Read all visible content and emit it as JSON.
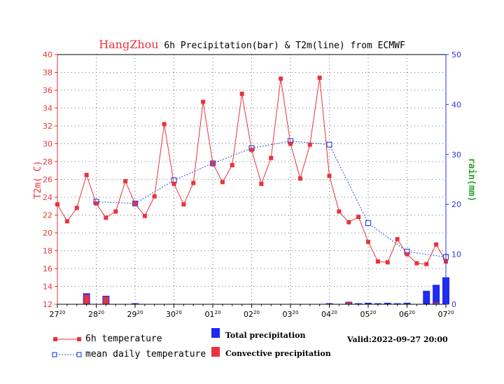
{
  "title": {
    "city": "HangZhou",
    "text": "6h Precipitation(bar) & T2m(line) from ECMWF"
  },
  "legend": {
    "temp_6h": "6h temperature",
    "mean_daily": "mean daily temperature",
    "total_precip": "Total precipitation",
    "convective_precip": "Convective precipitation"
  },
  "valid_text": "Valid:2022-09-27 20:00",
  "colors": {
    "temperature": "#e8333a",
    "mean_daily": "#2a4de8",
    "total_precip": "#1f2bf0",
    "convective_precip": "#e8333a",
    "left_axis": "#e8333a",
    "right_axis": "#2a33e8",
    "right_label": "#2aa02a"
  },
  "chart_data": {
    "type": "line",
    "x_tick_labels": [
      {
        "day": "27",
        "hour": "20"
      },
      {
        "day": "28",
        "hour": "20"
      },
      {
        "day": "29",
        "hour": "20"
      },
      {
        "day": "30",
        "hour": "20"
      },
      {
        "day": "01",
        "hour": "20"
      },
      {
        "day": "02",
        "hour": "20"
      },
      {
        "day": "03",
        "hour": "20"
      },
      {
        "day": "04",
        "hour": "20"
      },
      {
        "day": "05",
        "hour": "20"
      },
      {
        "day": "06",
        "hour": "20"
      },
      {
        "day": "07",
        "hour": "20"
      }
    ],
    "x_range_days": [
      0,
      10
    ],
    "ylabel_left": "T2m( C)",
    "ylim_left": [
      12,
      40
    ],
    "yticks_left": [
      12,
      14,
      16,
      18,
      20,
      22,
      24,
      26,
      28,
      30,
      32,
      34,
      36,
      38,
      40
    ],
    "ylabel_right": "rain(mm)",
    "ylim_right": [
      0,
      50
    ],
    "yticks_right": [
      0,
      10,
      20,
      30,
      40,
      50
    ],
    "grid": true,
    "series": [
      {
        "name": "6h temperature",
        "x": [
          0,
          0.25,
          0.5,
          0.75,
          1.0,
          1.25,
          1.5,
          1.75,
          2.0,
          2.25,
          2.5,
          2.75,
          3.0,
          3.25,
          3.5,
          3.75,
          4.0,
          4.25,
          4.5,
          4.75,
          5.0,
          5.25,
          5.5,
          5.75,
          6.0,
          6.25,
          6.5,
          6.75,
          7.0,
          7.25,
          7.5,
          7.75,
          8.0,
          8.25,
          8.5,
          8.75,
          9.0,
          9.25,
          9.5,
          9.75,
          10.0
        ],
        "values": [
          23.2,
          21.3,
          22.8,
          26.5,
          23.3,
          21.7,
          22.4,
          25.8,
          23.3,
          21.9,
          24.1,
          32.2,
          25.5,
          23.2,
          25.6,
          34.7,
          27.8,
          25.7,
          27.6,
          35.6,
          29.3,
          25.5,
          28.4,
          37.3,
          30.0,
          26.1,
          29.9,
          37.4,
          26.4,
          22.4,
          21.2,
          21.8,
          19.0,
          16.8,
          16.7,
          19.3,
          17.6,
          16.6,
          16.5,
          18.7,
          16.8
        ]
      },
      {
        "name": "mean daily temperature",
        "x": [
          1,
          2,
          3,
          4,
          5,
          6,
          7,
          8,
          9,
          10
        ],
        "values": [
          23.5,
          23.3,
          25.9,
          27.8,
          29.5,
          30.3,
          29.9,
          21.1,
          17.9,
          17.3
        ]
      }
    ],
    "precipitation": {
      "total": [
        {
          "x": 0.75,
          "value": 2.2
        },
        {
          "x": 1.25,
          "value": 1.7
        },
        {
          "x": 2.0,
          "value": 0.2
        },
        {
          "x": 7.0,
          "value": 0.2
        },
        {
          "x": 7.5,
          "value": 0.5
        },
        {
          "x": 7.75,
          "value": 0.2
        },
        {
          "x": 8.0,
          "value": 0.3
        },
        {
          "x": 8.25,
          "value": 0.2
        },
        {
          "x": 8.5,
          "value": 0.3
        },
        {
          "x": 8.75,
          "value": 0.2
        },
        {
          "x": 9.0,
          "value": 0.3
        },
        {
          "x": 9.5,
          "value": 2.7
        },
        {
          "x": 9.75,
          "value": 3.9
        },
        {
          "x": 10.0,
          "value": 5.4
        }
      ],
      "convective": [
        {
          "x": 0.75,
          "value": 1.9
        },
        {
          "x": 1.25,
          "value": 1.5
        },
        {
          "x": 7.5,
          "value": 0.4
        },
        {
          "x": 9.75,
          "value": 0.3
        }
      ]
    }
  }
}
